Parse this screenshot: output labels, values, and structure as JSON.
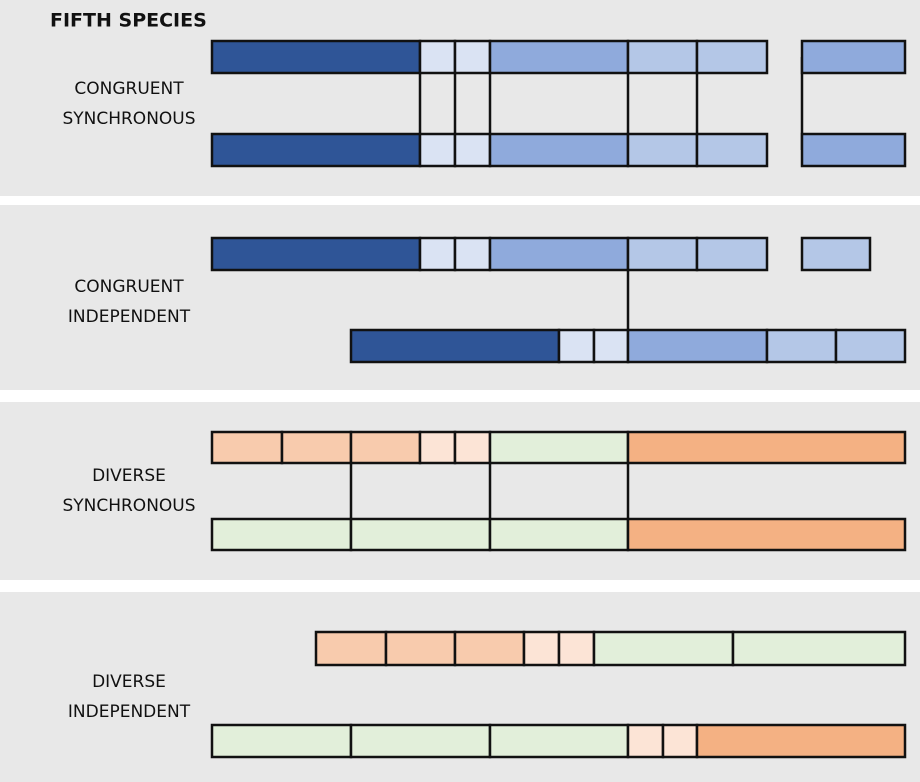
{
  "header": {
    "title": "FIFTH SPECIES"
  },
  "sections": [
    {
      "label": [
        "CONGRUENT",
        "SYNCHRONOUS"
      ]
    },
    {
      "label": [
        "CONGRUENT",
        "INDEPENDENT"
      ]
    },
    {
      "label": [
        "DIVERSE",
        "SYNCHRONOUS"
      ]
    },
    {
      "label": [
        "DIVERSE",
        "INDEPENDENT"
      ]
    }
  ]
}
